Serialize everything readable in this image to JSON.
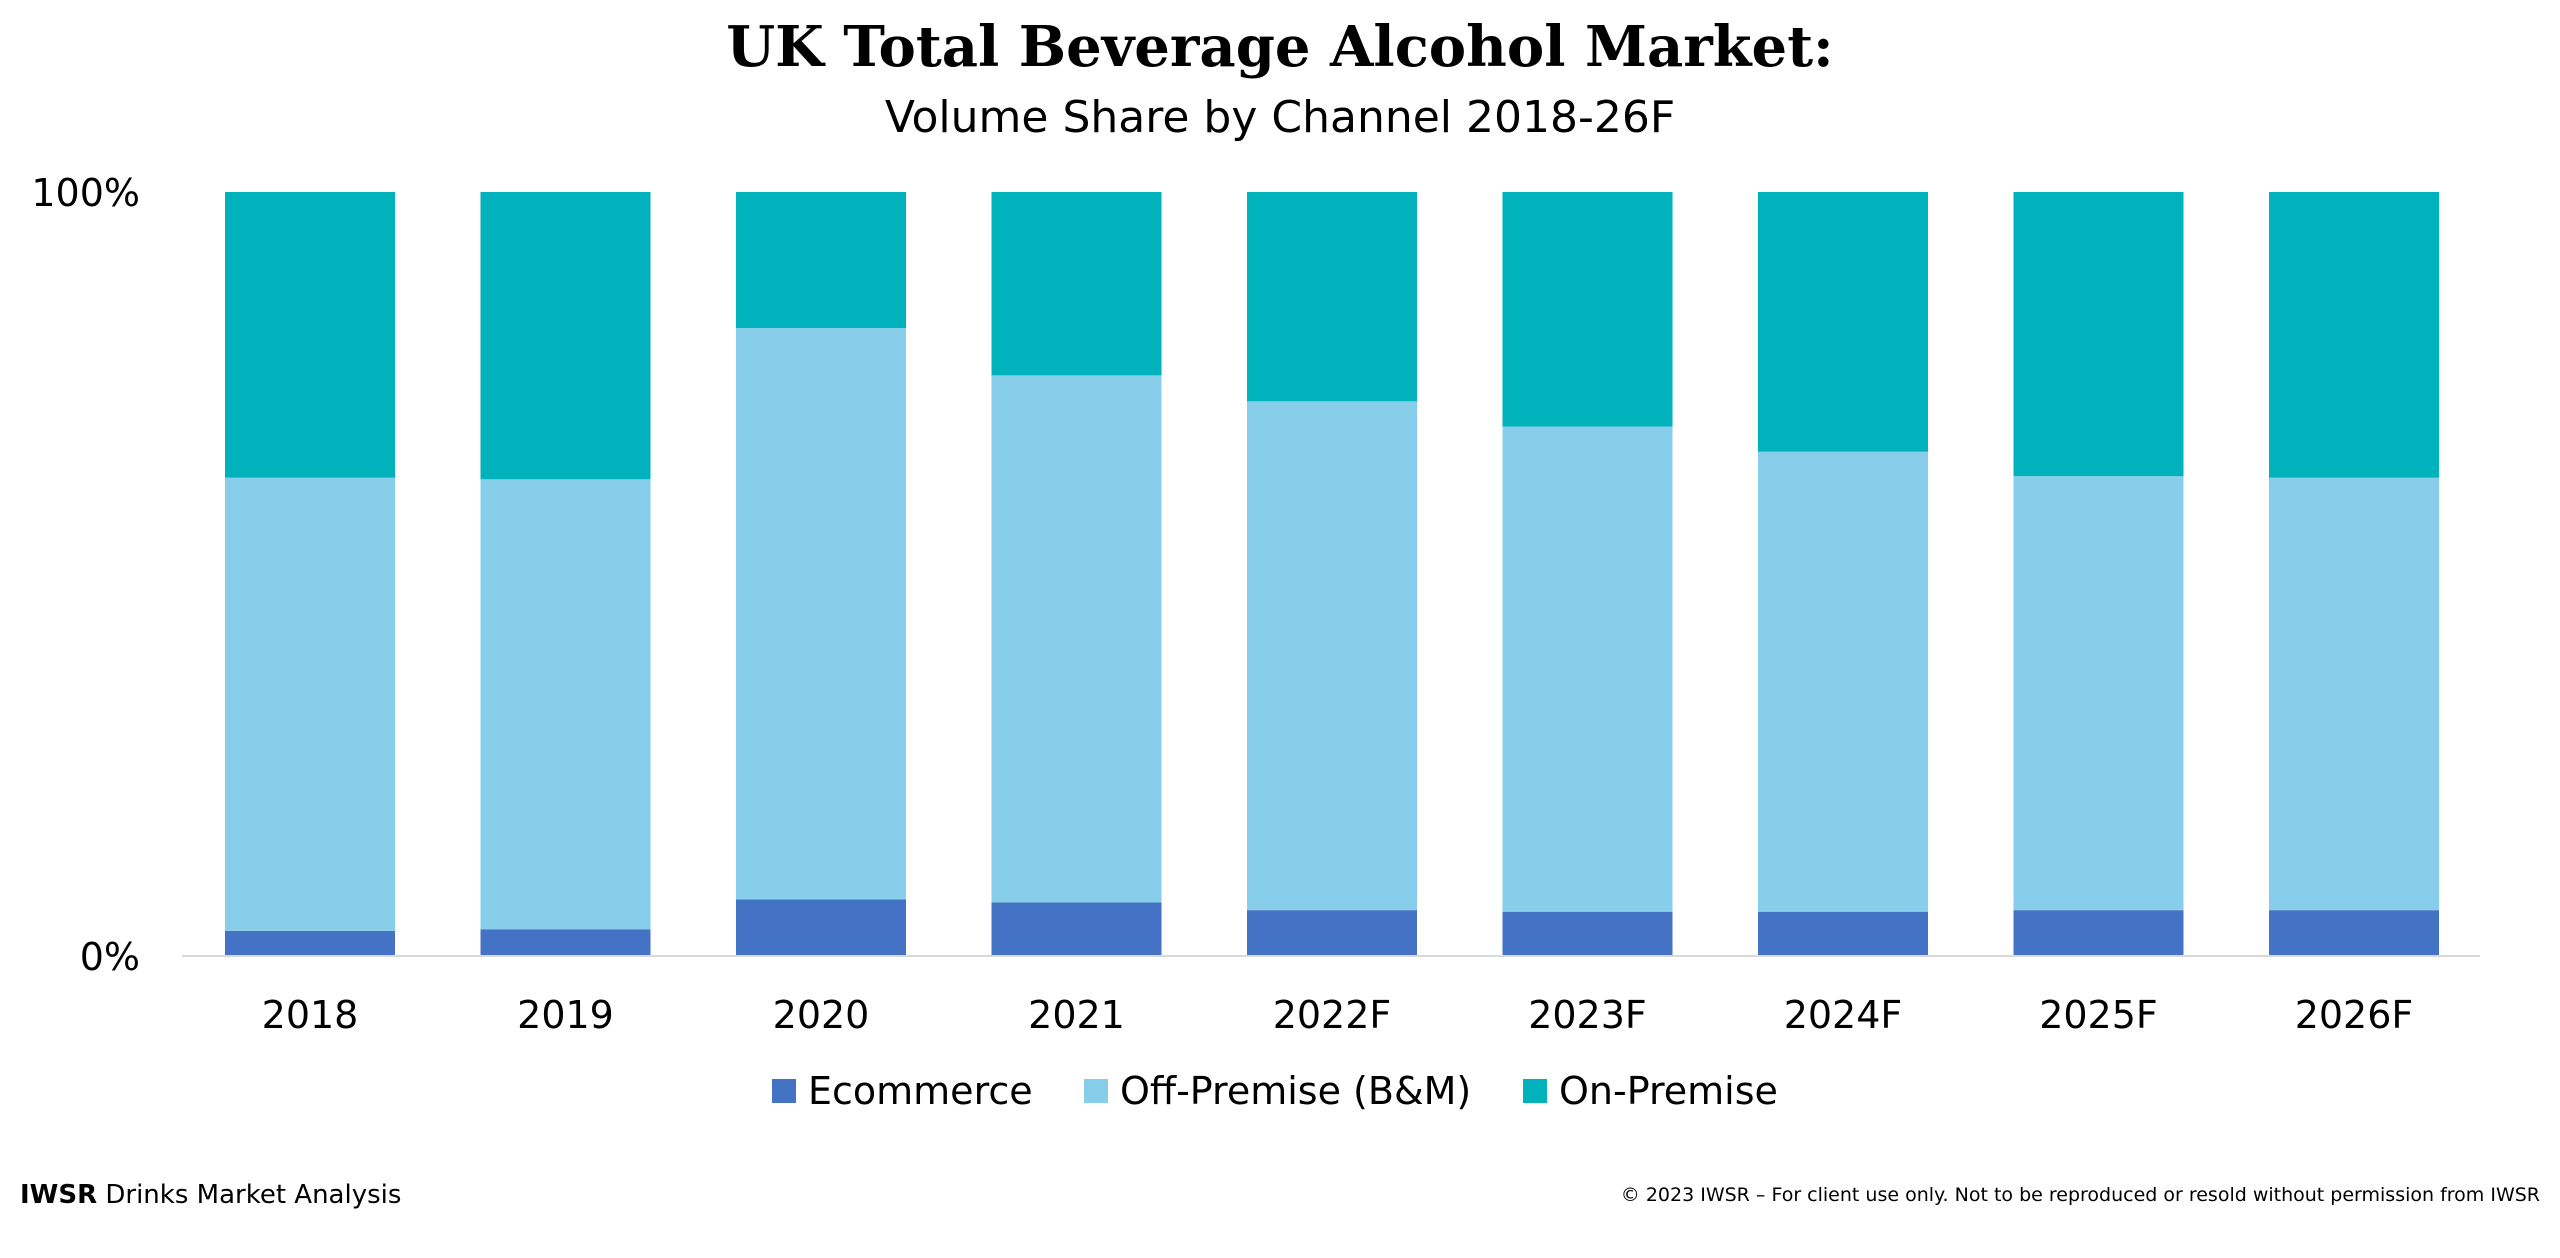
{
  "chart_data": {
    "type": "bar",
    "stacked": true,
    "title": "UK Total Beverage Alcohol Market:",
    "subtitle": "Volume Share by Channel 2018-26F",
    "categories": [
      "2018",
      "2019",
      "2020",
      "2021",
      "2022F",
      "2023F",
      "2024F",
      "2025F",
      "2026F"
    ],
    "series": [
      {
        "name": "Ecommerce",
        "color": "#4472C4",
        "values": [
          3.3,
          3.5,
          7.4,
          7.0,
          6.0,
          5.8,
          5.8,
          6.0,
          6.0
        ]
      },
      {
        "name": "Off-Premise (B&M)",
        "color": "#87CEEB",
        "values": [
          59.3,
          58.9,
          74.8,
          69.0,
          66.6,
          63.5,
          60.2,
          56.8,
          56.6
        ]
      },
      {
        "name": "On-Premise",
        "color": "#00B2BC",
        "values": [
          37.4,
          37.6,
          17.8,
          24.0,
          27.4,
          30.7,
          34.0,
          37.2,
          37.4
        ]
      }
    ],
    "ylim": [
      0,
      100
    ],
    "yticks": [
      "0%",
      "100%"
    ],
    "xlabel": "",
    "ylabel": "",
    "legend": "bottom-center"
  },
  "footer": {
    "brand": "IWSR",
    "brand_suffix": " Drinks Market Analysis",
    "copyright": "© 2023 IWSR – For client use only. Not to be reproduced or resold without permission from IWSR"
  }
}
